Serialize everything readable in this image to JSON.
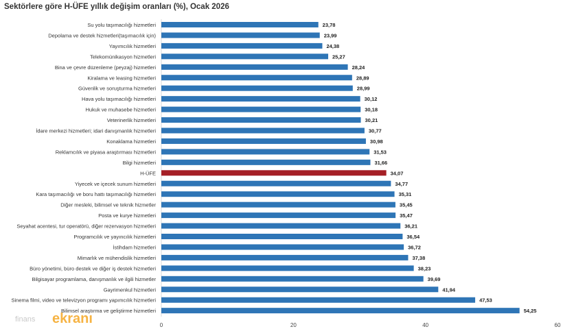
{
  "chart_data": {
    "type": "bar",
    "orientation": "horizontal",
    "title": "Sektörlere göre H-ÜFE yıllık değişim oranları (%), Ocak 2026",
    "xlabel": "",
    "ylabel": "",
    "xlim": [
      0,
      60
    ],
    "xticks": [
      0,
      20,
      40,
      60
    ],
    "grid": false,
    "legend": "none",
    "colors": {
      "default": "#2e75b6",
      "highlight": "#a51f26"
    },
    "highlight_category": "H-ÜFE",
    "categories": [
      "Su yolu taşımacılığı hizmetleri",
      "Depolama ve destek hizmetleri(taşımacılık için)",
      "Yayımcılık hizmetleri",
      "Telekomünikasyon hizmetleri",
      "Bina ve çevre düzenleme (peyzaj) hizmetleri",
      "Kiralama ve leasing hizmetleri",
      "Güvenlik ve soruşturma hizmetleri",
      "Hava yolu taşımacılığı hizmetleri",
      "Hukuk ve muhasebe hizmetleri",
      "Veterinerlik hizmetleri",
      "İdare merkezi hizmetleri; idari danışmanlık hizmetleri",
      "Konaklama hizmetleri",
      "Reklamcılık ve piyasa araştırması hizmetleri",
      "Bilgi hizmetleri",
      "H-ÜFE",
      "Yiyecek ve içecek sunum hizmetleri",
      "Kara taşımacılığı ve boru hattı taşımacılığı hizmetleri",
      "Diğer mesleki, bilimsel ve teknik hizmetler",
      "Posta ve kurye hizmetleri",
      "Seyahat acentesi, tur operatörü, diğer rezervasyon hizmetleri",
      "Programcılık ve yayıncılık hizmetleri",
      "İstihdam hizmetleri",
      "Mimarlık ve mühendislik hizmetleri",
      "Büro yönetimi, büro destek ve diğer iş destek hizmetleri",
      "Bilgisayar programlama, danışmanlık ve ilgili hizmetler",
      "Gayrimenkul hizmetleri",
      "Sinema filmi, video ve televizyon programı yapımcılık hizmetleri",
      "Bilimsel araştırma ve geliştirme hizmetleri"
    ],
    "values": [
      23.78,
      23.99,
      24.38,
      25.27,
      28.24,
      28.89,
      28.99,
      30.12,
      30.18,
      30.21,
      30.77,
      30.98,
      31.53,
      31.66,
      34.07,
      34.77,
      35.31,
      35.45,
      35.47,
      36.21,
      36.54,
      36.72,
      37.38,
      38.23,
      39.69,
      41.94,
      47.53,
      54.25
    ],
    "value_labels": [
      "23,78",
      "23,99",
      "24,38",
      "25,27",
      "28,24",
      "28,89",
      "28,99",
      "30,12",
      "30,18",
      "30,21",
      "30,77",
      "30,98",
      "31,53",
      "31,66",
      "34,07",
      "34,77",
      "35,31",
      "35,45",
      "35,47",
      "36,21",
      "36,54",
      "36,72",
      "37,38",
      "38,23",
      "39,69",
      "41,94",
      "47,53",
      "54,25"
    ]
  },
  "watermark": {
    "prefix": "finans",
    "text": "ekranı"
  }
}
